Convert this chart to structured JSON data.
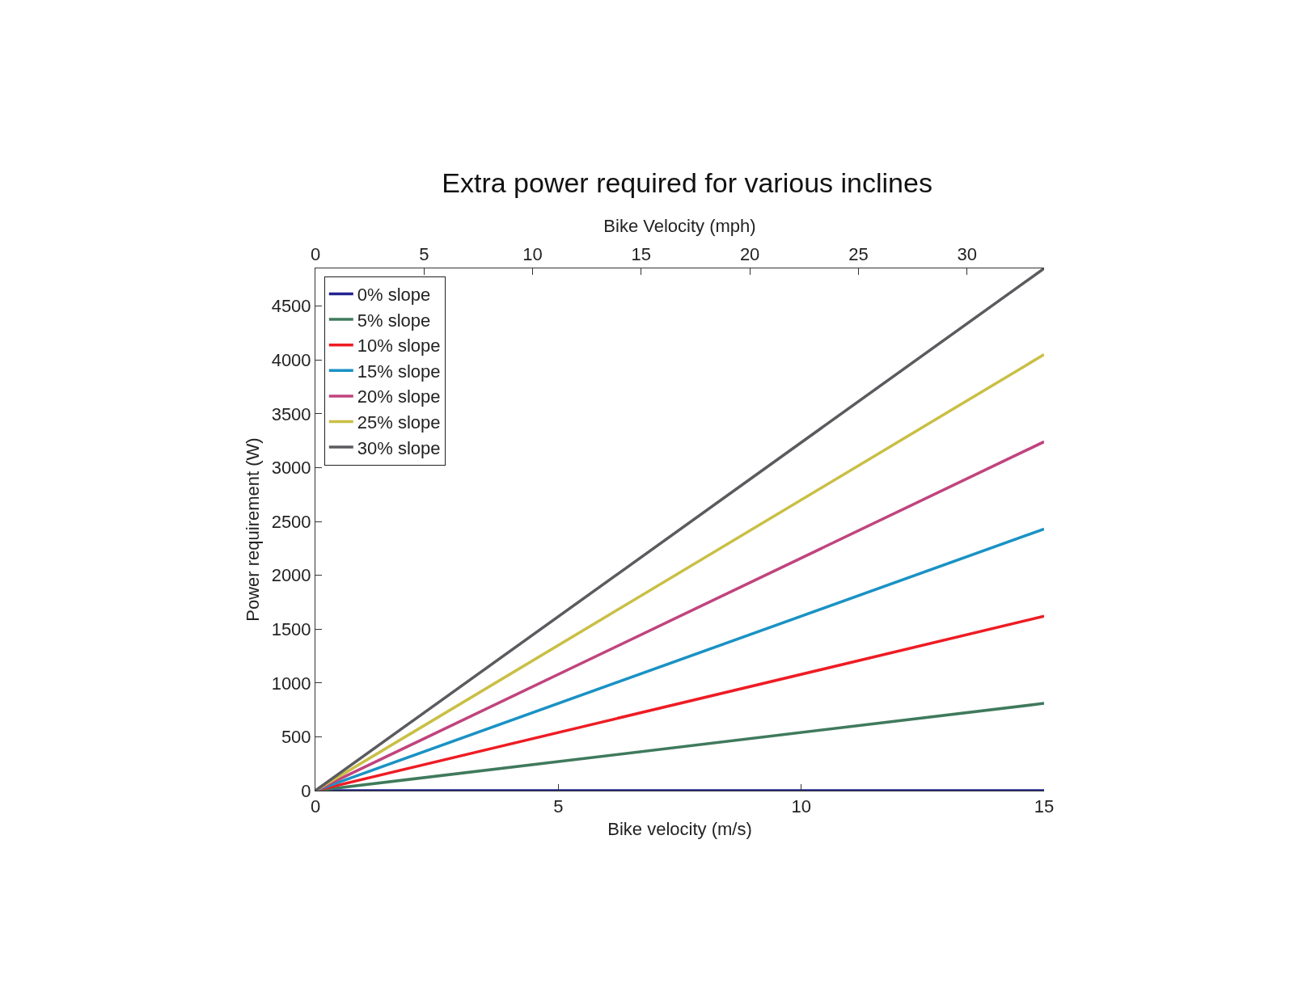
{
  "chart_data": {
    "type": "line",
    "title": "Extra power required for various inclines",
    "xlabel": "Bike velocity (m/s)",
    "ylabel": "Power requirement (W)",
    "x2label": "Bike Velocity (mph)",
    "x": [
      0,
      15
    ],
    "series": [
      {
        "name": "0% slope",
        "color": "#23238f",
        "values": [
          0,
          0
        ]
      },
      {
        "name": "5% slope",
        "color": "#3f7a5c",
        "values": [
          0,
          810
        ]
      },
      {
        "name": "10% slope",
        "color": "#ee1c24",
        "values": [
          0,
          1620
        ]
      },
      {
        "name": "15% slope",
        "color": "#1a92c4",
        "values": [
          0,
          2430
        ]
      },
      {
        "name": "20% slope",
        "color": "#c0447e",
        "values": [
          0,
          3240
        ]
      },
      {
        "name": "25% slope",
        "color": "#c9bf45",
        "values": [
          0,
          4050
        ]
      },
      {
        "name": "30% slope",
        "color": "#5b5b5f",
        "values": [
          0,
          4850
        ]
      }
    ],
    "xlim": [
      0,
      15
    ],
    "xticks": [
      0,
      5,
      10,
      15
    ],
    "x2lim": [
      0,
      33.55
    ],
    "x2ticks": [
      0,
      5,
      10,
      15,
      20,
      25,
      30
    ],
    "ylim": [
      0,
      4850
    ],
    "yticks": [
      0,
      500,
      1000,
      1500,
      2000,
      2500,
      3000,
      3500,
      4000,
      4500
    ],
    "legend": "top left"
  }
}
